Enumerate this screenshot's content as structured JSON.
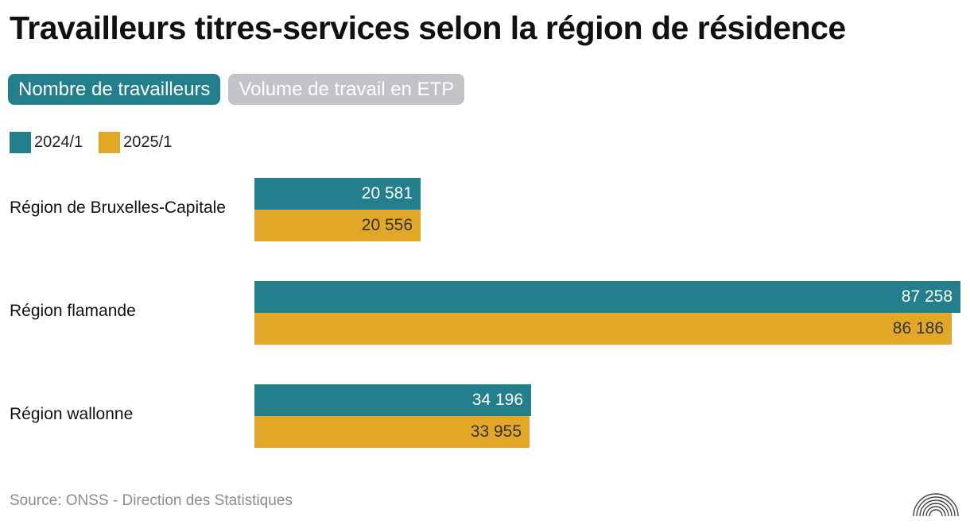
{
  "title": "Travailleurs titres-services selon la région de résidence",
  "tabs": [
    {
      "label": "Nombre de travailleurs",
      "active": true
    },
    {
      "label": "Volume de travail en ETP",
      "active": false
    }
  ],
  "source": "Source: ONSS - Direction des Statistiques",
  "colors": {
    "series1": "#247f8d",
    "series2": "#e3a727",
    "label_on_series1": "#ffffff",
    "label_on_series2": "#333333"
  },
  "chart_data": {
    "type": "bar",
    "orientation": "horizontal",
    "title": "Travailleurs titres-services selon la région de résidence",
    "categories": [
      "Région de Bruxelles-Capitale",
      "Région flamande",
      "Région wallonne"
    ],
    "series": [
      {
        "name": "2024/1",
        "values": [
          20581,
          87258,
          34196
        ],
        "labels": [
          "20 581",
          "87 258",
          "34 196"
        ]
      },
      {
        "name": "2025/1",
        "values": [
          20556,
          86186,
          33955
        ],
        "labels": [
          "20 556",
          "86 186",
          "33 955"
        ]
      }
    ],
    "xlim": [
      0,
      87258
    ],
    "legend": "top-left",
    "grid": false,
    "xlabel": "",
    "ylabel": ""
  }
}
